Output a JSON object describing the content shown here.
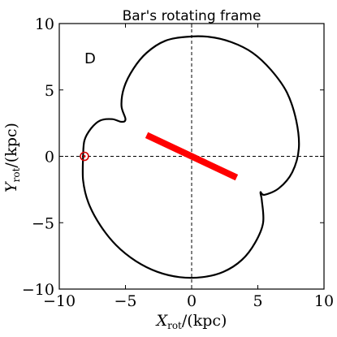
{
  "chart_data": {
    "type": "line",
    "title": "Bar's rotating frame",
    "panel_label": "D",
    "xlabel": {
      "symbol": "X",
      "subscript": "rot",
      "unit": "/(kpc)"
    },
    "ylabel": {
      "symbol": "Y",
      "subscript": "rot",
      "unit": "/(kpc)"
    },
    "xlim": [
      -10,
      10
    ],
    "ylim": [
      -10,
      10
    ],
    "xticks": [
      -10,
      -5,
      0,
      5,
      10
    ],
    "yticks": [
      -10,
      -5,
      0,
      5,
      10
    ],
    "xtick_labels": [
      "−10",
      "−5",
      "0",
      "5",
      "10"
    ],
    "ytick_labels": [
      "−10",
      "−5",
      "0",
      "5",
      "10"
    ],
    "grid": false,
    "reference_lines": {
      "x": 0,
      "y": 0,
      "style": "dashed"
    },
    "series": [
      {
        "kind": "orbit",
        "color": "#000000",
        "points": [
          [
            -8.2,
            0
          ],
          [
            -8.1,
            1.2
          ],
          [
            -7.6,
            2.1
          ],
          [
            -6.9,
            2.7
          ],
          [
            -6.0,
            2.8
          ],
          [
            -5.3,
            2.6
          ],
          [
            -5.0,
            2.8
          ],
          [
            -5.3,
            3.8
          ],
          [
            -5.1,
            5.2
          ],
          [
            -4.4,
            6.6
          ],
          [
            -3.4,
            7.8
          ],
          [
            -2.0,
            8.7
          ],
          [
            -0.4,
            9.0
          ],
          [
            1.3,
            9.0
          ],
          [
            3.0,
            8.6
          ],
          [
            4.6,
            7.8
          ],
          [
            6.0,
            6.5
          ],
          [
            7.2,
            4.8
          ],
          [
            7.9,
            2.7
          ],
          [
            8.1,
            0.6
          ],
          [
            7.6,
            -1.2
          ],
          [
            6.6,
            -2.4
          ],
          [
            5.5,
            -2.9
          ],
          [
            5.2,
            -2.7
          ],
          [
            5.3,
            -3.3
          ],
          [
            5.4,
            -5.0
          ],
          [
            4.8,
            -6.5
          ],
          [
            3.8,
            -7.8
          ],
          [
            2.4,
            -8.7
          ],
          [
            0.8,
            -9.1
          ],
          [
            -0.9,
            -9.1
          ],
          [
            -2.6,
            -8.7
          ],
          [
            -4.2,
            -7.9
          ],
          [
            -5.7,
            -6.7
          ],
          [
            -6.9,
            -5.2
          ],
          [
            -7.8,
            -3.5
          ],
          [
            -8.2,
            -1.8
          ],
          [
            -8.2,
            0
          ]
        ]
      },
      {
        "kind": "bar",
        "color": "#ff0000",
        "points": [
          [
            -3.4,
            1.6
          ],
          [
            3.4,
            -1.6
          ]
        ]
      }
    ],
    "marker": {
      "x": -8.1,
      "y": 0,
      "color": "#d40000",
      "shape": "circle-with-dot"
    }
  }
}
